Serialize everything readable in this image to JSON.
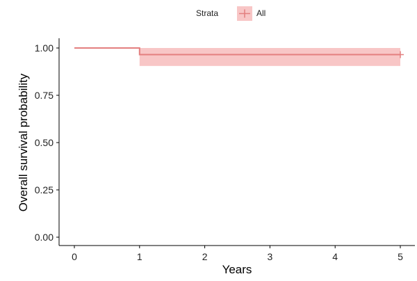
{
  "chart_data": {
    "type": "line",
    "subtype": "kaplan-meier survival curve",
    "title": "",
    "xlabel": "Years",
    "ylabel": "Overall survival probability",
    "xlim": [
      0,
      5
    ],
    "ylim": [
      0,
      1
    ],
    "x_ticks": [
      0,
      1,
      2,
      3,
      4,
      5
    ],
    "x_tick_labels": [
      "0",
      "1",
      "2",
      "3",
      "4",
      "5"
    ],
    "y_ticks": [
      0,
      0.25,
      0.5,
      0.75,
      1.0
    ],
    "y_tick_labels": [
      "0.00",
      "0.25",
      "0.50",
      "0.75",
      "1.00"
    ],
    "grid": false,
    "legend": {
      "position": "top",
      "title": "Strata",
      "entries": [
        "All"
      ]
    },
    "series": [
      {
        "name": "All",
        "color": "#e37f7f",
        "band_color": "#f8c6c6",
        "step_x": [
          0,
          1,
          1,
          5
        ],
        "step_y": [
          1.0,
          1.0,
          0.965,
          0.965
        ],
        "ci_band": [
          {
            "x_start": 1,
            "x_end": 5,
            "lower": 0.905,
            "upper": 1.0
          }
        ],
        "censor_marks": [
          {
            "x": 5,
            "y": 0.965
          }
        ]
      }
    ]
  }
}
